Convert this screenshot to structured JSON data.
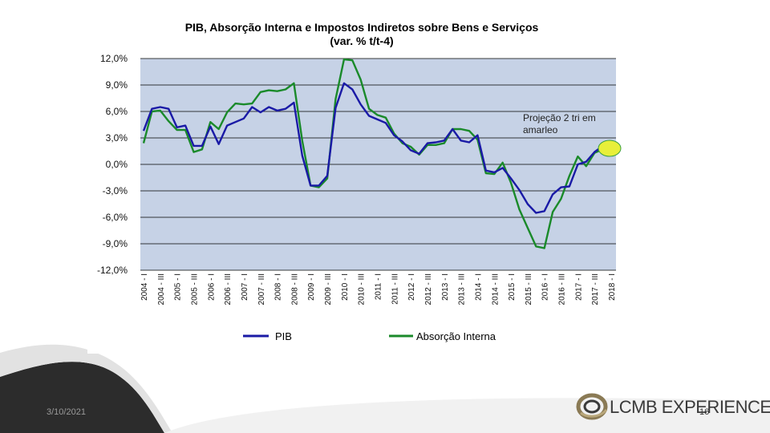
{
  "footer": {
    "date": "3/10/2021",
    "slide_number": "16"
  },
  "logo": {
    "text": "LCMB EXPERIENCE"
  },
  "annotation": {
    "line1": "Projeção 2 tri em",
    "line2": "amarleo"
  },
  "colors": {
    "pib": "#1a1aa6",
    "absorcao": "#1a8a2a",
    "plot_bg": "#c6d2e6",
    "highlight": "#e8ef3a",
    "dark_wave": "#2c2c2c"
  },
  "chart_data": {
    "type": "line",
    "title": "PIB, Absorção  Interna e Impostos  Indiretos sobre Bens e Serviços",
    "subtitle": "(var. % t/t-4)",
    "xlabel": "",
    "ylabel": "",
    "ylim": [
      -12,
      12
    ],
    "yticks": [
      "12,0%",
      "9,0%",
      "6,0%",
      "3,0%",
      "0,0%",
      "-3,0%",
      "-6,0%",
      "-9,0%",
      "-12,0%"
    ],
    "grid": true,
    "legend_position": "bottom",
    "x_tick_labels": [
      "2004 - I",
      "2004 - III",
      "2005 - I",
      "2005 - III",
      "2006 - I",
      "2006 - III",
      "2007 - I",
      "2007 - III",
      "2008 - I",
      "2008 - III",
      "2009 - I",
      "2009 - III",
      "2010 - I",
      "2010 - III",
      "2011 - I",
      "2011 - III",
      "2012 - I",
      "2012 - III",
      "2013 - I",
      "2013 - III",
      "2014 - I",
      "2014 - III",
      "2015 - I",
      "2015 - III",
      "2016 - I",
      "2016 - III",
      "2017 - I",
      "2017 - III",
      "2018 - I"
    ],
    "series": [
      {
        "name": "PIB",
        "values": [
          3.8,
          6.3,
          6.5,
          6.3,
          4.2,
          4.4,
          2.1,
          2.1,
          4.3,
          2.3,
          4.4,
          4.8,
          5.2,
          6.5,
          5.9,
          6.5,
          6.1,
          6.3,
          7.0,
          1.0,
          -2.4,
          -2.4,
          -1.3,
          6.4,
          9.2,
          8.5,
          6.8,
          5.5,
          5.1,
          4.7,
          3.3,
          2.6,
          1.6,
          1.2,
          2.4,
          2.5,
          2.7,
          4.0,
          2.7,
          2.5,
          3.3,
          -0.7,
          -0.9,
          -0.4,
          -1.6,
          -2.9,
          -4.5,
          -5.5,
          -5.3,
          -3.4,
          -2.6,
          -2.5,
          0.0,
          0.3,
          1.4,
          2.1,
          1.2
        ]
      },
      {
        "name": "Absorção Interna",
        "values": [
          2.4,
          6.0,
          6.1,
          4.9,
          3.9,
          3.9,
          1.4,
          1.7,
          4.8,
          4.0,
          5.9,
          6.9,
          6.8,
          6.9,
          8.2,
          8.4,
          8.3,
          8.5,
          9.2,
          2.7,
          -2.4,
          -2.6,
          -1.6,
          7.4,
          11.9,
          11.8,
          9.6,
          6.3,
          5.6,
          5.3,
          3.5,
          2.4,
          2.0,
          1.1,
          2.2,
          2.2,
          2.4,
          4.0,
          4.0,
          3.8,
          2.8,
          -1.0,
          -1.1,
          0.2,
          -2.1,
          -5.1,
          -7.2,
          -9.3,
          -9.5,
          -5.4,
          -3.9,
          -1.3,
          0.9,
          -0.2,
          1.3,
          1.7,
          1.6
        ]
      }
    ]
  }
}
